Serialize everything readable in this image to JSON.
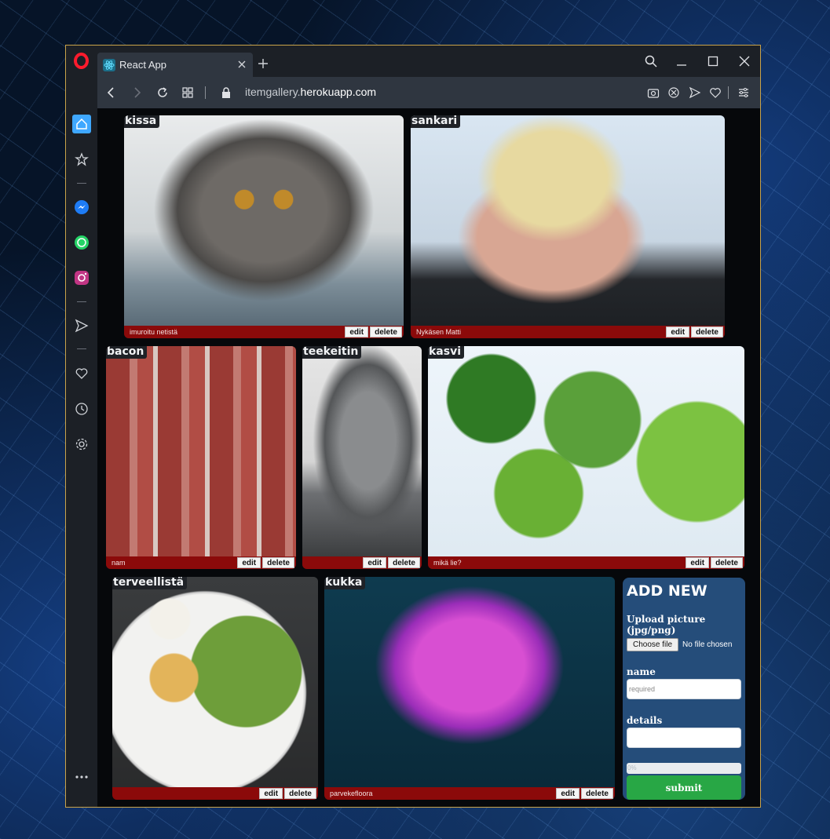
{
  "browser": {
    "tab_title": "React App",
    "url_prefix": "itemgallery.",
    "url_host": "herokuapp.com"
  },
  "sidebar": {
    "icons": [
      "home-icon",
      "bookmarks-icon",
      "messenger-icon",
      "whatsapp-icon",
      "instagram-icon",
      "send-icon",
      "heart-icon",
      "history-icon",
      "settings-icon",
      "more-icon"
    ]
  },
  "gallery": {
    "items": [
      {
        "title": "kissa",
        "details": "imuroitu netistä",
        "edit": "edit",
        "delete": "delete"
      },
      {
        "title": "sankari",
        "details": "Nykäsen Matti",
        "edit": "edit",
        "delete": "delete"
      },
      {
        "title": "bacon",
        "details": "nam",
        "edit": "edit",
        "delete": "delete"
      },
      {
        "title": "teekeitin",
        "details": "",
        "edit": "edit",
        "delete": "delete"
      },
      {
        "title": "kasvi",
        "details": "mikä lie?",
        "edit": "edit",
        "delete": "delete"
      },
      {
        "title": "terveellistä",
        "details": "",
        "edit": "edit",
        "delete": "delete"
      },
      {
        "title": "kukka",
        "details": "parvekefloora",
        "edit": "edit",
        "delete": "delete"
      }
    ]
  },
  "add_new": {
    "heading": "ADD NEW",
    "upload_label": "Upload picture (jpg/png)",
    "choose_file": "Choose file",
    "no_file": "No file chosen",
    "name_label": "name",
    "name_placeholder": "required",
    "details_label": "details",
    "details_value": "",
    "progress_text": "0%",
    "progress": 0,
    "submit": "submit"
  },
  "colors": {
    "card_footer": "#8b0a0a",
    "panel": "#254d7a",
    "submit": "#28a745",
    "accent_border": "#c9a34a"
  }
}
